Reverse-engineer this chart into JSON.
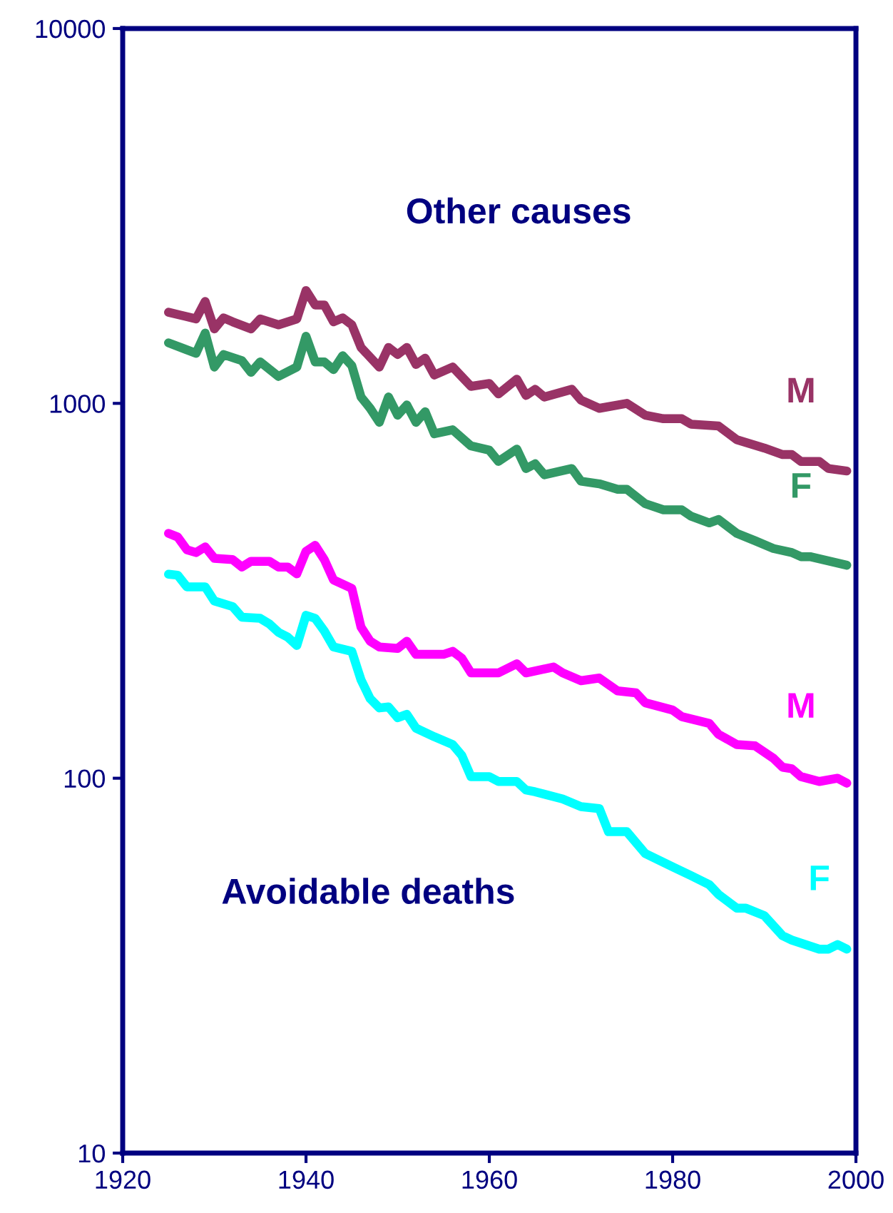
{
  "chart_data": {
    "type": "line",
    "annotations": [
      "Other causes",
      "Avoidable deaths"
    ],
    "xlim": [
      1920,
      2000
    ],
    "xticks": [
      1920,
      1940,
      1960,
      1980,
      2000
    ],
    "ylim": [
      10,
      10000
    ],
    "yticks": [
      10,
      100,
      1000,
      10000
    ],
    "log": "y",
    "grid": false,
    "legend": false,
    "marker": "none",
    "line_style": "solid",
    "series": [
      {
        "name": "M",
        "color": "#993366",
        "x": [
          1925,
          1928,
          1929,
          1930,
          1931,
          1932,
          1934,
          1935,
          1937,
          1939,
          1940,
          1941,
          1942,
          1943,
          1944,
          1945,
          1946,
          1948,
          1949,
          1950,
          1951,
          1952,
          1953,
          1954,
          1956,
          1958,
          1960,
          1961,
          1963,
          1964,
          1965,
          1966,
          1969,
          1970,
          1972,
          1975,
          1977,
          1979,
          1981,
          1982,
          1985,
          1987,
          1990,
          1992,
          1993,
          1994,
          1996,
          1997,
          1999
        ],
        "values": [
          1750,
          1680,
          1870,
          1580,
          1690,
          1650,
          1580,
          1680,
          1620,
          1680,
          2000,
          1830,
          1830,
          1650,
          1690,
          1620,
          1410,
          1250,
          1410,
          1350,
          1410,
          1270,
          1320,
          1190,
          1250,
          1110,
          1130,
          1060,
          1160,
          1050,
          1090,
          1040,
          1090,
          1020,
          970,
          1000,
          930,
          910,
          910,
          880,
          870,
          800,
          760,
          730,
          730,
          700,
          700,
          670,
          660
        ]
      },
      {
        "name": "F",
        "color": "#339966",
        "x": [
          1925,
          1928,
          1929,
          1930,
          1931,
          1933,
          1934,
          1935,
          1937,
          1939,
          1940,
          1941,
          1942,
          1943,
          1944,
          1945,
          1946,
          1947,
          1948,
          1949,
          1950,
          1951,
          1952,
          1953,
          1954,
          1956,
          1958,
          1960,
          1961,
          1963,
          1964,
          1965,
          1966,
          1969,
          1970,
          1972,
          1974,
          1975,
          1977,
          1979,
          1981,
          1982,
          1984,
          1985,
          1987,
          1989,
          1991,
          1993,
          1994,
          1995,
          1997,
          1999
        ],
        "values": [
          1450,
          1360,
          1540,
          1250,
          1350,
          1300,
          1210,
          1290,
          1180,
          1250,
          1510,
          1290,
          1290,
          1230,
          1340,
          1260,
          1040,
          970,
          890,
          1040,
          930,
          990,
          890,
          950,
          830,
          850,
          770,
          750,
          700,
          755,
          670,
          690,
          645,
          670,
          620,
          610,
          590,
          590,
          540,
          520,
          520,
          500,
          480,
          490,
          450,
          430,
          410,
          400,
          390,
          390,
          380,
          370
        ]
      },
      {
        "name": "M",
        "color": "#ff00ff",
        "x": [
          1925,
          1926,
          1927,
          1928,
          1929,
          1930,
          1932,
          1933,
          1934,
          1936,
          1937,
          1938,
          1939,
          1940,
          1941,
          1942,
          1943,
          1945,
          1946,
          1947,
          1948,
          1950,
          1951,
          1952,
          1955,
          1956,
          1957,
          1958,
          1961,
          1963,
          1964,
          1967,
          1968,
          1970,
          1972,
          1974,
          1976,
          1977,
          1980,
          1981,
          1984,
          1985,
          1987,
          1989,
          1991,
          1992,
          1993,
          1994,
          1996,
          1998,
          1999
        ],
        "values": [
          450,
          440,
          407,
          400,
          414,
          386,
          383,
          366,
          379,
          379,
          366,
          366,
          351,
          403,
          418,
          383,
          338,
          321,
          253,
          232,
          224,
          222,
          232,
          214,
          214,
          218,
          209,
          191,
          191,
          202,
          191,
          198,
          191,
          182,
          185,
          171,
          169,
          159,
          152,
          146,
          140,
          131,
          123,
          122,
          113,
          107,
          106,
          101,
          98,
          100,
          97
        ]
      },
      {
        "name": "F",
        "color": "#00ffff",
        "x": [
          1925,
          1926,
          1927,
          1929,
          1930,
          1932,
          1933,
          1935,
          1936,
          1937,
          1938,
          1939,
          1940,
          1941,
          1942,
          1943,
          1945,
          1946,
          1947,
          1948,
          1949,
          1950,
          1951,
          1952,
          1954,
          1956,
          1957,
          1958,
          1960,
          1961,
          1963,
          1964,
          1965,
          1968,
          1970,
          1972,
          1973,
          1975,
          1977,
          1980,
          1982,
          1984,
          1985,
          1987,
          1988,
          1990,
          1992,
          1993,
          1996,
          1997,
          1998,
          1999
        ],
        "values": [
          350,
          348,
          324,
          324,
          297,
          287,
          269,
          267,
          258,
          245,
          238,
          226,
          272,
          267,
          247,
          224,
          218,
          183,
          163,
          154,
          155,
          145,
          148,
          136,
          129,
          123,
          115,
          101,
          101,
          98,
          98,
          93,
          92,
          88,
          84,
          83,
          72,
          72,
          63,
          58,
          55,
          52,
          49,
          45,
          45,
          43,
          38,
          37,
          35,
          35,
          36,
          35
        ]
      }
    ]
  }
}
